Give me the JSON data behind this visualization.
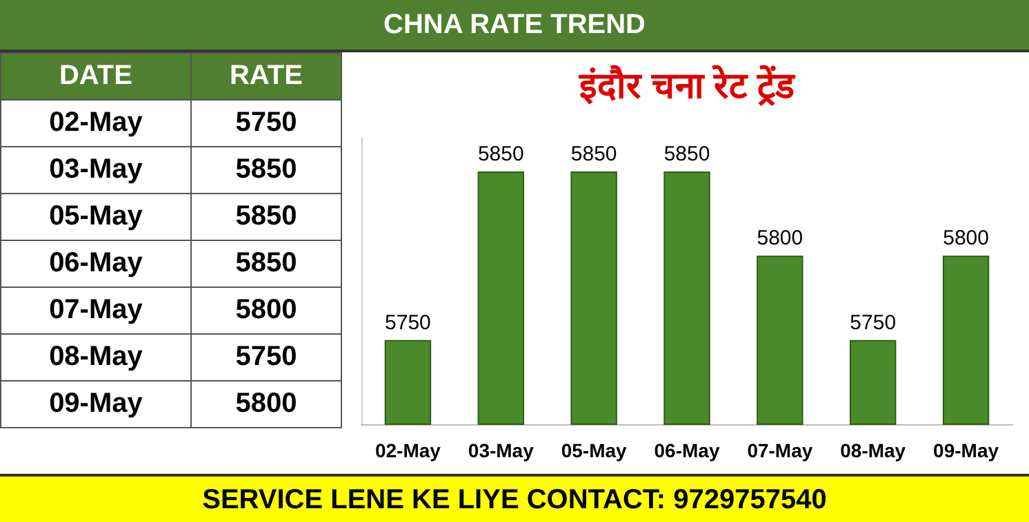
{
  "chart_data": [
    {
      "type": "other",
      "annotations": [
        "DATE",
        "RATE",
        "02-May",
        "5750",
        "03-May",
        "5850",
        "05-May",
        "5850",
        "06-May",
        "5850",
        "07-May",
        "5800",
        "08-May",
        "5750",
        "09-May",
        "5800"
      ]
    },
    {
      "type": "bar",
      "title": "इंदौर चना रेट ट्रेंड",
      "subtitle": "CHNA RATE TREND",
      "categories": [
        "02-May",
        "03-May",
        "05-May",
        "06-May",
        "07-May",
        "08-May",
        "09-May"
      ],
      "values": [
        5750,
        5850,
        5850,
        5850,
        5800,
        5750,
        5800
      ],
      "color": "#4a8a2a",
      "ylim": [
        5700,
        5870
      ],
      "data_labels": true,
      "annotations": [
        "SERVICE LENE KE LIYE CONTACT: 9729757540"
      ]
    }
  ]
}
